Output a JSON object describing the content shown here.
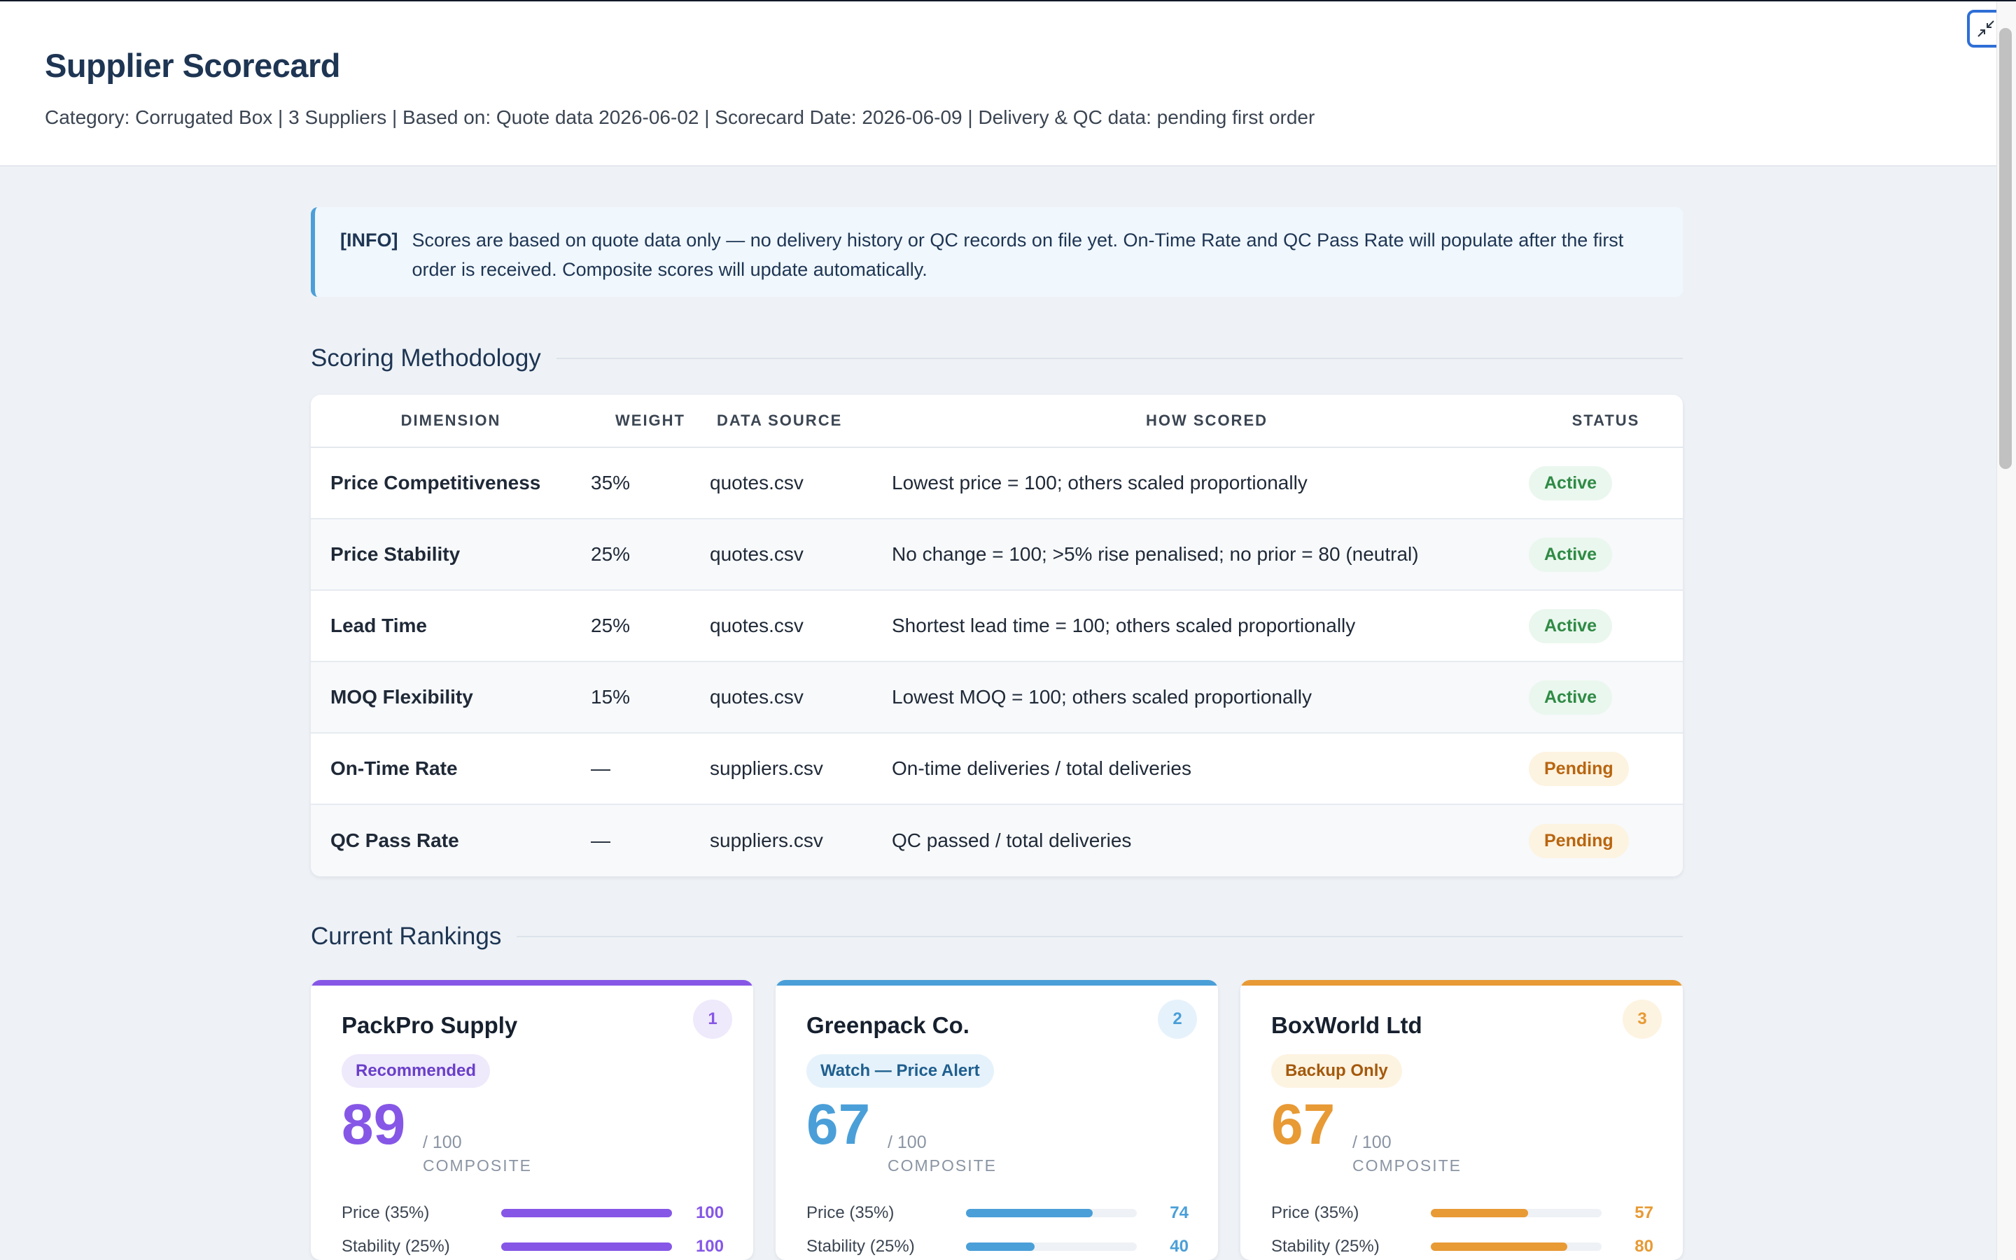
{
  "header": {
    "title": "Supplier Scorecard",
    "subtitle": "Category: Corrugated Box  |  3 Suppliers  |  Based on: Quote data 2026-06-02  |  Scorecard Date: 2026-06-09  |  Delivery & QC data: pending first order"
  },
  "info": {
    "tag": "[INFO]",
    "text": "Scores are based on quote data only — no delivery history or QC records on file yet. On-Time Rate and QC Pass Rate will populate after the first order is received. Composite scores will update automatically."
  },
  "methodology": {
    "title": "Scoring Methodology",
    "columns": [
      "DIMENSION",
      "WEIGHT",
      "DATA SOURCE",
      "HOW SCORED",
      "STATUS"
    ],
    "rows": [
      {
        "dimension": "Price Competitiveness",
        "weight": "35%",
        "source": "quotes.csv",
        "how": "Lowest price = 100; others scaled proportionally",
        "status": "Active"
      },
      {
        "dimension": "Price Stability",
        "weight": "25%",
        "source": "quotes.csv",
        "how": "No change = 100; >5% rise penalised; no prior = 80 (neutral)",
        "status": "Active"
      },
      {
        "dimension": "Lead Time",
        "weight": "25%",
        "source": "quotes.csv",
        "how": "Shortest lead time = 100; others scaled proportionally",
        "status": "Active"
      },
      {
        "dimension": "MOQ Flexibility",
        "weight": "15%",
        "source": "quotes.csv",
        "how": "Lowest MOQ = 100; others scaled proportionally",
        "status": "Active"
      },
      {
        "dimension": "On-Time Rate",
        "weight": "—",
        "source": "suppliers.csv",
        "how": "On-time deliveries / total deliveries",
        "status": "Pending"
      },
      {
        "dimension": "QC Pass Rate",
        "weight": "—",
        "source": "suppliers.csv",
        "how": "QC passed / total deliveries",
        "status": "Pending"
      }
    ]
  },
  "rankings": {
    "title": "Current Rankings",
    "cards": [
      {
        "rank": "1",
        "name": "PackPro Supply",
        "badge": "Recommended",
        "score": "89",
        "of": "/ 100",
        "label": "COMPOSITE",
        "accent": "#8657e6",
        "badge_bg": "#efe9fc",
        "badge_fg": "#6a3fc9",
        "rank_bg": "#efe9fc",
        "metrics": [
          {
            "label": "Price (35%)",
            "value": 100
          },
          {
            "label": "Stability (25%)",
            "value": 100
          }
        ]
      },
      {
        "rank": "2",
        "name": "Greenpack Co.",
        "badge": "Watch — Price Alert",
        "score": "67",
        "of": "/ 100",
        "label": "COMPOSITE",
        "accent": "#4a9fd8",
        "badge_bg": "#e6f2fb",
        "badge_fg": "#1f5f8f",
        "rank_bg": "#e6f2fb",
        "metrics": [
          {
            "label": "Price (35%)",
            "value": 74
          },
          {
            "label": "Stability (25%)",
            "value": 40
          }
        ]
      },
      {
        "rank": "3",
        "name": "BoxWorld Ltd",
        "badge": "Backup Only",
        "score": "67",
        "of": "/ 100",
        "label": "COMPOSITE",
        "accent": "#e89a35",
        "badge_bg": "#fdf3e1",
        "badge_fg": "#a4590c",
        "rank_bg": "#fdf3e1",
        "metrics": [
          {
            "label": "Price (35%)",
            "value": 57
          },
          {
            "label": "Stability (25%)",
            "value": 80
          }
        ]
      }
    ]
  }
}
